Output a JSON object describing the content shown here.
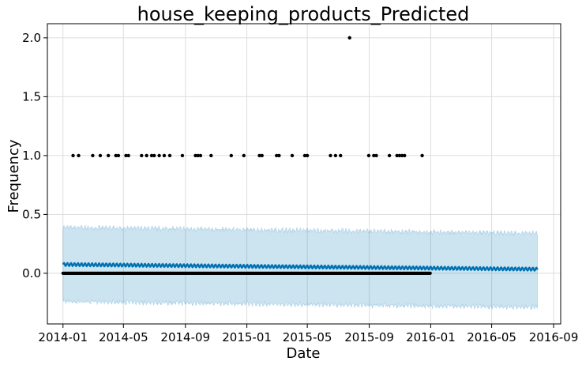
{
  "chart_data": {
    "type": "scatter",
    "title": "house_keeping_products_Predicted",
    "xlabel": "Date",
    "ylabel": "Frequency",
    "xlim": [
      "2013-12-01",
      "2016-09-15"
    ],
    "ylim": [
      -0.43,
      2.12
    ],
    "x_ticks": [
      "2014-01",
      "2014-05",
      "2014-09",
      "2015-01",
      "2015-05",
      "2015-09",
      "2016-01",
      "2016-05",
      "2016-09"
    ],
    "y_ticks": [
      0.0,
      0.5,
      1.0,
      1.5,
      2.0
    ],
    "grid": true,
    "observed_range": [
      "2014-01-01",
      "2015-12-31"
    ],
    "observed_baseline": 0,
    "observed_points": [
      {
        "x": "2014-01-21",
        "y": 1
      },
      {
        "x": "2014-02-01",
        "y": 1
      },
      {
        "x": "2014-03-01",
        "y": 1
      },
      {
        "x": "2014-03-16",
        "y": 1
      },
      {
        "x": "2014-04-01",
        "y": 1
      },
      {
        "x": "2014-04-16",
        "y": 1
      },
      {
        "x": "2014-04-21",
        "y": 1
      },
      {
        "x": "2014-05-06",
        "y": 1
      },
      {
        "x": "2014-05-11",
        "y": 1
      },
      {
        "x": "2014-06-06",
        "y": 1
      },
      {
        "x": "2014-06-16",
        "y": 1
      },
      {
        "x": "2014-06-26",
        "y": 1
      },
      {
        "x": "2014-07-01",
        "y": 1
      },
      {
        "x": "2014-07-11",
        "y": 1
      },
      {
        "x": "2014-07-21",
        "y": 1
      },
      {
        "x": "2014-08-01",
        "y": 1
      },
      {
        "x": "2014-08-26",
        "y": 1
      },
      {
        "x": "2014-09-21",
        "y": 1
      },
      {
        "x": "2014-09-26",
        "y": 1
      },
      {
        "x": "2014-10-01",
        "y": 1
      },
      {
        "x": "2014-10-22",
        "y": 1
      },
      {
        "x": "2014-12-01",
        "y": 1
      },
      {
        "x": "2014-12-26",
        "y": 1
      },
      {
        "x": "2015-01-26",
        "y": 1
      },
      {
        "x": "2015-01-31",
        "y": 1
      },
      {
        "x": "2015-03-01",
        "y": 1
      },
      {
        "x": "2015-03-06",
        "y": 1
      },
      {
        "x": "2015-04-01",
        "y": 1
      },
      {
        "x": "2015-04-26",
        "y": 1
      },
      {
        "x": "2015-05-01",
        "y": 1
      },
      {
        "x": "2015-06-16",
        "y": 1
      },
      {
        "x": "2015-06-26",
        "y": 1
      },
      {
        "x": "2015-07-06",
        "y": 1
      },
      {
        "x": "2015-07-24",
        "y": 2
      },
      {
        "x": "2015-08-31",
        "y": 1
      },
      {
        "x": "2015-09-10",
        "y": 1
      },
      {
        "x": "2015-09-15",
        "y": 1
      },
      {
        "x": "2015-10-11",
        "y": 1
      },
      {
        "x": "2015-10-26",
        "y": 1
      },
      {
        "x": "2015-10-31",
        "y": 1
      },
      {
        "x": "2015-11-05",
        "y": 1
      },
      {
        "x": "2015-11-10",
        "y": 1
      },
      {
        "x": "2015-12-15",
        "y": 1
      }
    ],
    "forecast": {
      "start": "2014-01-01",
      "end": "2016-07-31",
      "yhat_start": 0.075,
      "yhat_end": 0.035,
      "weekly_amplitude": 0.012,
      "lower_start": -0.24,
      "lower_end": -0.29,
      "upper_start": 0.39,
      "upper_end": 0.34,
      "band_noise": 0.025
    },
    "colors": {
      "forecast_line": "#0072B2",
      "interval_fill": "#0072B2",
      "observed": "#000000",
      "grid": "#dddddd"
    }
  }
}
